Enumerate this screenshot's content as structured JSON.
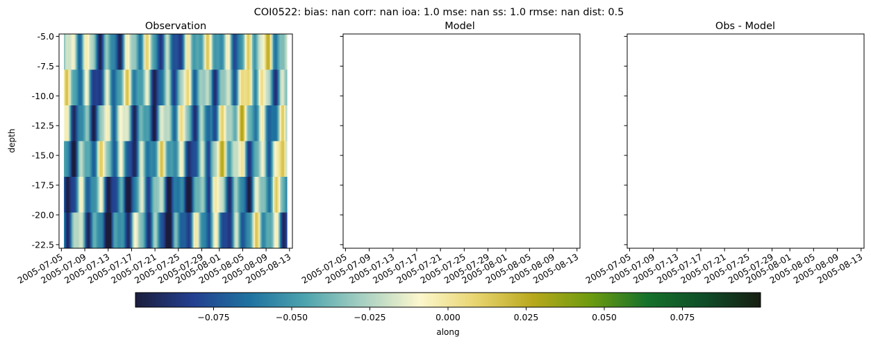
{
  "chart_data": {
    "type": "heatmap",
    "title": "COI0522: bias: nan  corr: nan  ioa: 1.0  mse: nan  ss: 1.0  rmse: nan  dist: 0.5",
    "panels": [
      {
        "title": "Observation"
      },
      {
        "title": "Model"
      },
      {
        "title": "Obs - Model"
      }
    ],
    "ylabel": "depth",
    "ylim": [
      -22.8,
      -4.8
    ],
    "yticks": [
      "-5.0",
      "-7.5",
      "-10.0",
      "-12.5",
      "-15.0",
      "-17.5",
      "-20.0",
      "-22.5"
    ],
    "ytick_values": [
      -5.0,
      -7.5,
      -10.0,
      -12.5,
      -15.0,
      -17.5,
      -20.0,
      -22.5
    ],
    "xticks": [
      "2005-07-05",
      "2005-07-09",
      "2005-07-13",
      "2005-07-17",
      "2005-07-21",
      "2005-07-25",
      "2005-07-29",
      "2005-08-01",
      "2005-08-05",
      "2005-08-09",
      "2005-08-13"
    ],
    "xtick_days": [
      0,
      4,
      8,
      12,
      16,
      20,
      24,
      27,
      31,
      35,
      39
    ],
    "xlim_days": [
      -0.4,
      39.5
    ],
    "depth_levels": [
      -5.0,
      -9.2,
      -12.2,
      -15.3,
      -18.4,
      -21.5
    ],
    "depth_edges": [
      -4.8,
      -7.8,
      -10.8,
      -13.8,
      -16.8,
      -19.8,
      -22.8
    ],
    "colorbar": {
      "label": "along",
      "min": -0.1,
      "max": 0.1,
      "ticks": [
        "−0.075",
        "−0.050",
        "−0.025",
        "0.000",
        "0.025",
        "0.050",
        "0.075"
      ],
      "tick_values": [
        -0.075,
        -0.05,
        -0.025,
        0.0,
        0.025,
        0.05,
        0.075
      ],
      "colormap": [
        "#1b1d3c",
        "#233f8f",
        "#1f72a0",
        "#4ea4ae",
        "#a7d0c2",
        "#fcf7cd",
        "#e8d46e",
        "#b7a81c",
        "#6e9b0f",
        "#16712b",
        "#0f4d28",
        "#171d12"
      ]
    }
  }
}
